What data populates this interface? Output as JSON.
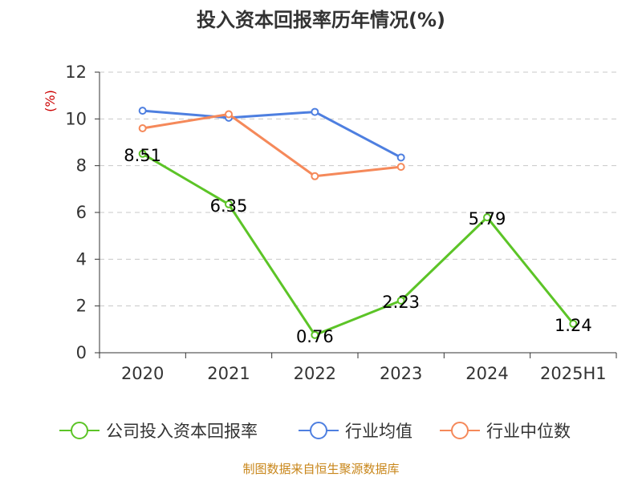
{
  "chart_data": {
    "type": "line",
    "title": "投入资本回报率历年情况(%)",
    "ylabel": "(%)",
    "xlabel": "",
    "categories": [
      "2020",
      "2021",
      "2022",
      "2023",
      "2024",
      "2025H1"
    ],
    "ylim": [
      0,
      12
    ],
    "yticks": [
      0,
      2,
      4,
      6,
      8,
      10,
      12
    ],
    "grid": "horizontal dashed",
    "legend_position": "bottom",
    "series": [
      {
        "name": "公司投入资本回报率",
        "color": "#5cc427",
        "values": [
          8.51,
          6.35,
          0.76,
          2.23,
          5.79,
          1.24
        ],
        "labels": [
          "8.51",
          "6.35",
          "0.76",
          "2.23",
          "5.79",
          "1.24"
        ]
      },
      {
        "name": "行业均值",
        "color": "#4e7fe0",
        "values": [
          10.35,
          10.05,
          10.3,
          8.35,
          null,
          null
        ]
      },
      {
        "name": "行业中位数",
        "color": "#f5895a",
        "values": [
          9.6,
          10.2,
          7.55,
          7.95,
          null,
          null
        ]
      }
    ]
  },
  "source": "制图数据来自恒生聚源数据库"
}
